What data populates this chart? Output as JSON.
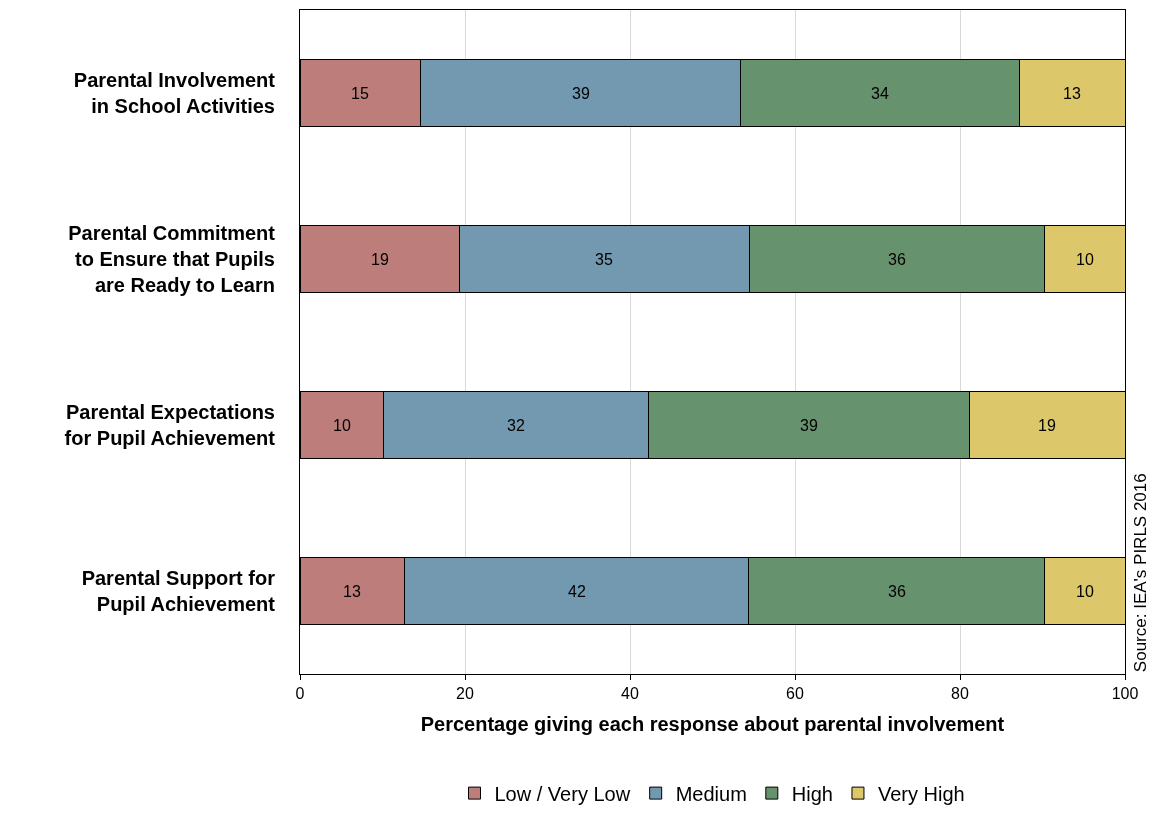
{
  "chart_data": {
    "type": "bar",
    "orientation": "horizontal",
    "stacked": true,
    "categories": [
      "Parental Involvement\nin School Activities",
      "Parental Commitment\nto Ensure that Pupils\nare Ready to Learn",
      "Parental Expectations\nfor Pupil Achievement",
      "Parental Support for\nPupil Achievement"
    ],
    "series": [
      {
        "name": "Low / Very Low",
        "color": "#bc7d7b",
        "values": [
          14.6,
          19.3,
          10.1,
          12.7
        ],
        "value_labels": [
          "15",
          "19",
          "10",
          "13"
        ]
      },
      {
        "name": "Medium",
        "color": "#7399b1",
        "values": [
          38.8,
          35.2,
          32.2,
          41.7
        ],
        "value_labels": [
          "39",
          "35",
          "32",
          "42"
        ]
      },
      {
        "name": "High",
        "color": "#66936e",
        "values": [
          33.8,
          35.7,
          38.9,
          35.9
        ],
        "value_labels": [
          "34",
          "36",
          "39",
          "36"
        ]
      },
      {
        "name": "Very High",
        "color": "#dcc76a",
        "values": [
          12.8,
          9.8,
          18.8,
          9.7
        ],
        "value_labels": [
          "13",
          "10",
          "19",
          "10"
        ]
      }
    ],
    "xlabel": "Percentage giving each response about parental involvement",
    "xlim": [
      0,
      100
    ],
    "xticks": [
      0,
      20,
      40,
      60,
      80,
      100
    ],
    "grid": "x",
    "legend": "bottom",
    "annotations": [
      "Source: IEA's PIRLS 2016"
    ]
  }
}
